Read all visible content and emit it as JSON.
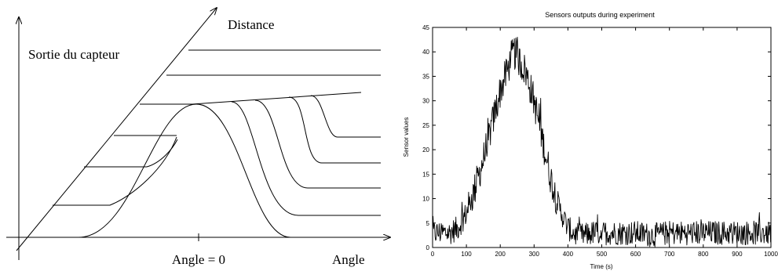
{
  "chart_data": [
    {
      "type": "diagram",
      "labels": {
        "y_axis": "Sortie du capteur",
        "depth_axis": "Distance",
        "angle_zero": "Angle = 0",
        "x_axis": "Angle"
      }
    },
    {
      "type": "line",
      "title": "Sensors outputs during experiment",
      "xlabel": "Time (s)",
      "ylabel": "Sensor values",
      "xlim": [
        0,
        1000
      ],
      "ylim": [
        0,
        45
      ],
      "xticks": [
        0,
        100,
        200,
        300,
        400,
        500,
        600,
        700,
        800,
        900,
        1000
      ],
      "yticks": [
        0,
        5,
        10,
        15,
        20,
        25,
        30,
        35,
        40,
        45
      ],
      "grid": false,
      "series": [
        {
          "x": [
            0,
            25,
            50,
            75,
            100,
            125,
            150,
            175,
            200,
            225,
            240,
            250,
            275,
            300,
            325,
            350,
            375,
            400,
            425,
            450,
            475,
            500,
            550,
            600,
            650,
            700,
            750,
            800,
            850,
            900,
            950,
            1000
          ],
          "values": [
            3,
            3,
            3,
            4,
            7,
            12,
            18,
            25,
            32,
            37,
            40,
            39,
            36,
            30,
            22,
            14,
            8,
            4,
            2.5,
            2.5,
            3,
            3,
            3,
            3,
            2.5,
            3,
            3,
            3,
            3,
            3,
            3,
            3
          ]
        }
      ]
    }
  ]
}
